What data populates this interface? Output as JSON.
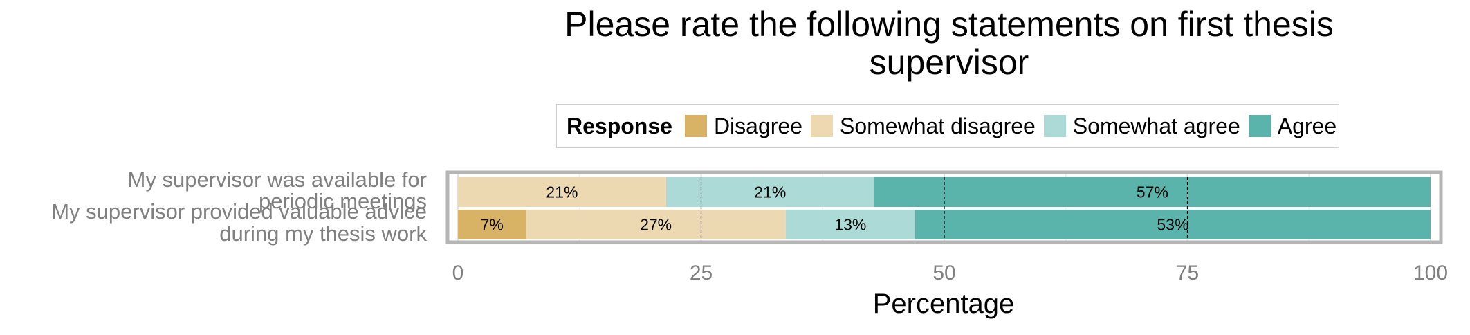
{
  "title_lines": [
    "Please rate the following statements on first thesis",
    "supervisor"
  ],
  "legend": {
    "title": "Response",
    "items": [
      {
        "label": "Disagree",
        "color": "#d8b365"
      },
      {
        "label": "Somewhat disagree",
        "color": "#ecd9b2"
      },
      {
        "label": "Somewhat agree",
        "color": "#acdad6"
      },
      {
        "label": "Agree",
        "color": "#5ab4ac"
      }
    ]
  },
  "chart_data": {
    "type": "bar",
    "orientation": "horizontal",
    "stacked": true,
    "title": "Please rate the following statements on first thesis supervisor",
    "xlabel": "Percentage",
    "ylabel": "",
    "xlim": [
      0,
      100
    ],
    "xticks": [
      0,
      25,
      50,
      75,
      100
    ],
    "grid": true,
    "legend_position": "top",
    "categories": [
      [
        "My supervisor was available for",
        "periodic meetings"
      ],
      [
        "My supervisor provided valuable advice",
        "during my thesis work"
      ]
    ],
    "series": [
      {
        "name": "Disagree",
        "color": "#d8b365",
        "values": [
          0,
          7
        ],
        "labels": [
          "",
          "7%"
        ]
      },
      {
        "name": "Somewhat disagree",
        "color": "#ecd9b2",
        "values": [
          21.4,
          26.7
        ],
        "labels": [
          "21%",
          "27%"
        ]
      },
      {
        "name": "Somewhat agree",
        "color": "#acdad6",
        "values": [
          21.4,
          13.3
        ],
        "labels": [
          "21%",
          "13%"
        ]
      },
      {
        "name": "Agree",
        "color": "#5ab4ac",
        "values": [
          57.2,
          53
        ],
        "labels": [
          "57%",
          "53%"
        ]
      }
    ]
  }
}
